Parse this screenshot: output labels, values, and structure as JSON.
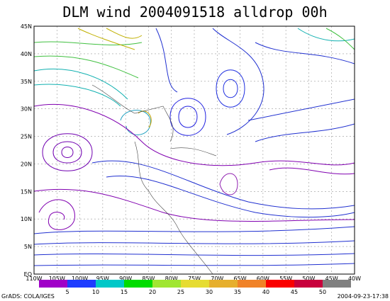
{
  "title": "DLM wind 2004091518 alldrop 00h",
  "lat_labels": [
    "EQ",
    "5N",
    "10N",
    "15N",
    "20N",
    "25N",
    "30N",
    "35N",
    "40N",
    "45N"
  ],
  "lon_labels": [
    "110W",
    "105W",
    "100W",
    "95W",
    "90W",
    "85W",
    "80W",
    "75W",
    "70W",
    "65W",
    "60W",
    "55W",
    "50W",
    "45W",
    "40W"
  ],
  "colorbar_labels": [
    5,
    10,
    15,
    20,
    25,
    30,
    35,
    40,
    45,
    50
  ],
  "footer": {
    "left": "GrADS: COLA/IGES",
    "right": "2004-09-23-17:38"
  }
}
